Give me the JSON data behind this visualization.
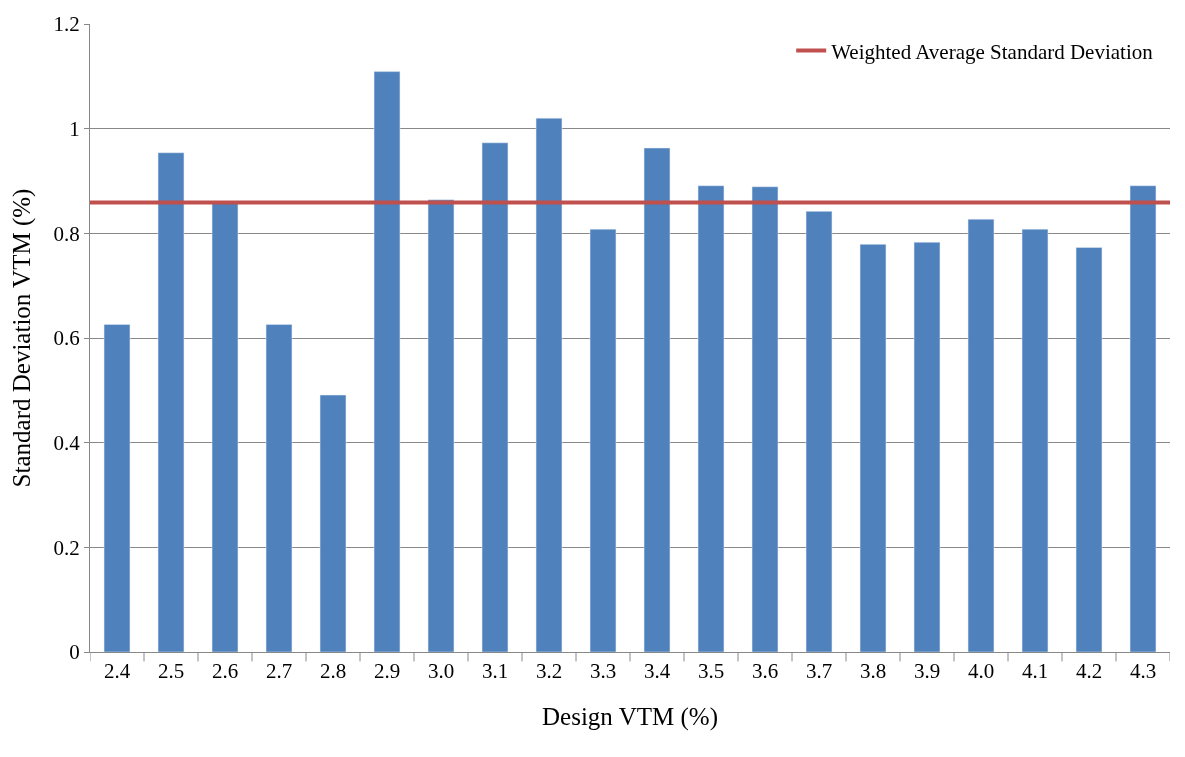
{
  "chart_data": {
    "type": "bar",
    "xlabel": "Design VTM (%)",
    "ylabel": "Standard Deviation VTM (%)",
    "categories": [
      "2.4",
      "2.5",
      "2.6",
      "2.7",
      "2.8",
      "2.9",
      "3.0",
      "3.1",
      "3.2",
      "3.3",
      "3.4",
      "3.5",
      "3.6",
      "3.7",
      "3.8",
      "3.9",
      "4.0",
      "4.1",
      "4.2",
      "4.3"
    ],
    "values": [
      0.626,
      0.954,
      0.857,
      0.626,
      0.491,
      1.109,
      0.864,
      0.973,
      1.02,
      0.808,
      0.963,
      0.891,
      0.889,
      0.842,
      0.779,
      0.783,
      0.827,
      0.808,
      0.773,
      0.891
    ],
    "color": "#4f81bd",
    "ylim": [
      0,
      1.2
    ],
    "yticks": [
      0,
      0.2,
      0.4,
      0.6,
      0.8,
      1,
      1.2
    ],
    "grid": "y",
    "legend": "top right",
    "ref_lines": [
      {
        "axis": "y",
        "value": 0.859,
        "label": "Weighted Average Standard Deviation",
        "color": "#c0504d",
        "line_style": "solid"
      }
    ]
  }
}
